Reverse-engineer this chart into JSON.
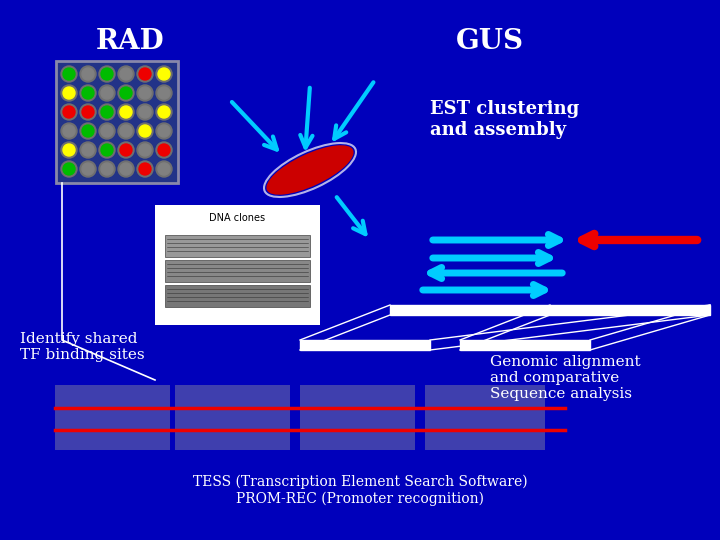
{
  "bg_color": "#0000BB",
  "title_rad": "RAD",
  "title_gus": "GUS",
  "text_est": "EST clustering\nand assembly",
  "text_identify": "Identify shared\nTF binding sites",
  "text_genomic": "Genomic alignment\nand comparative\nSequence analysis",
  "text_tess": "TESS (Transcription Element Search Software)\nPROM-REC (Promoter recognition)",
  "text_dna_clones": "DNA clones",
  "cyan_color": "#00CCFF",
  "red_color": "#EE0000",
  "white_color": "#FFFFFF",
  "grid_colors": [
    [
      "#00BB00",
      "#808080",
      "#00BB00",
      "#808080",
      "#EE0000",
      "#FFFF00"
    ],
    [
      "#FFFF00",
      "#00BB00",
      "#808080",
      "#00BB00",
      "#808080",
      "#808080"
    ],
    [
      "#EE0000",
      "#EE0000",
      "#00BB00",
      "#FFFF00",
      "#808080",
      "#FFFF00"
    ],
    [
      "#808080",
      "#00BB00",
      "#808080",
      "#808080",
      "#FFFF00",
      "#808080"
    ],
    [
      "#FFFF00",
      "#808080",
      "#00BB00",
      "#EE0000",
      "#808080",
      "#EE0000"
    ],
    [
      "#00BB00",
      "#808080",
      "#808080",
      "#808080",
      "#EE0000",
      "#808080"
    ]
  ]
}
